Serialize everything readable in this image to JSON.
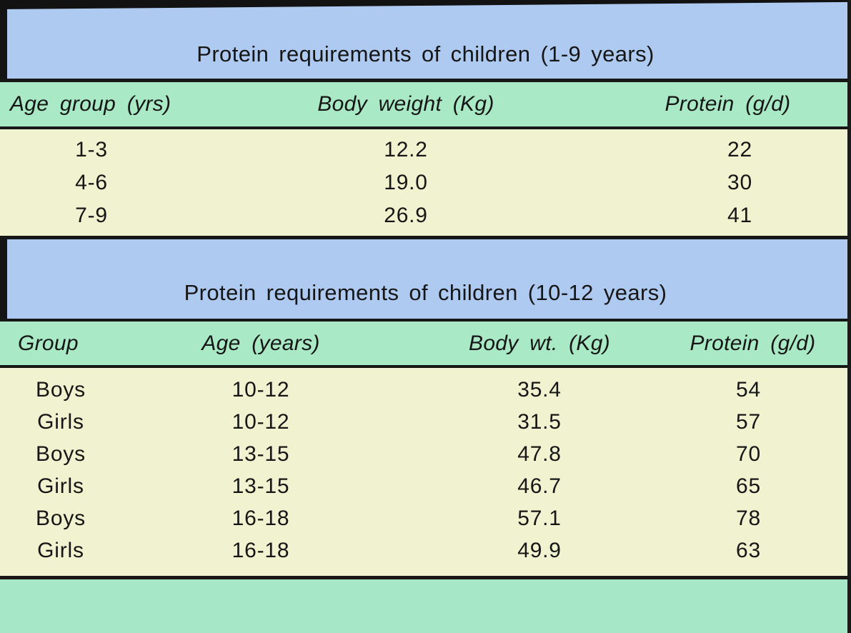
{
  "page": {
    "colors": {
      "title_band": "#aecaf1",
      "header_band": "#a9e9c5",
      "body_band": "#f1f2d0",
      "footer_band": "#a6e7c8",
      "rule": "#171717",
      "ink": "#161616"
    },
    "tables": [
      {
        "title": "Protein requirements of children (1-9 years)",
        "columns": [
          "Age group (yrs)",
          "Body weight (Kg)",
          "Protein (g/d)"
        ],
        "rows": [
          [
            "1-3",
            "12.2",
            "22"
          ],
          [
            "4-6",
            "19.0",
            "30"
          ],
          [
            "7-9",
            "26.9",
            "41"
          ]
        ]
      },
      {
        "title": "Protein requirements of children (10-12 years)",
        "columns": [
          "Group",
          "Age (years)",
          "Body wt. (Kg)",
          "Protein (g/d)"
        ],
        "rows": [
          [
            "Boys",
            "10-12",
            "35.4",
            "54"
          ],
          [
            "Girls",
            "10-12",
            "31.5",
            "57"
          ],
          [
            "Boys",
            "13-15",
            "47.8",
            "70"
          ],
          [
            "Girls",
            "13-15",
            "46.7",
            "65"
          ],
          [
            "Boys",
            "16-18",
            "57.1",
            "78"
          ],
          [
            "Girls",
            "16-18",
            "49.9",
            "63"
          ]
        ]
      }
    ]
  }
}
